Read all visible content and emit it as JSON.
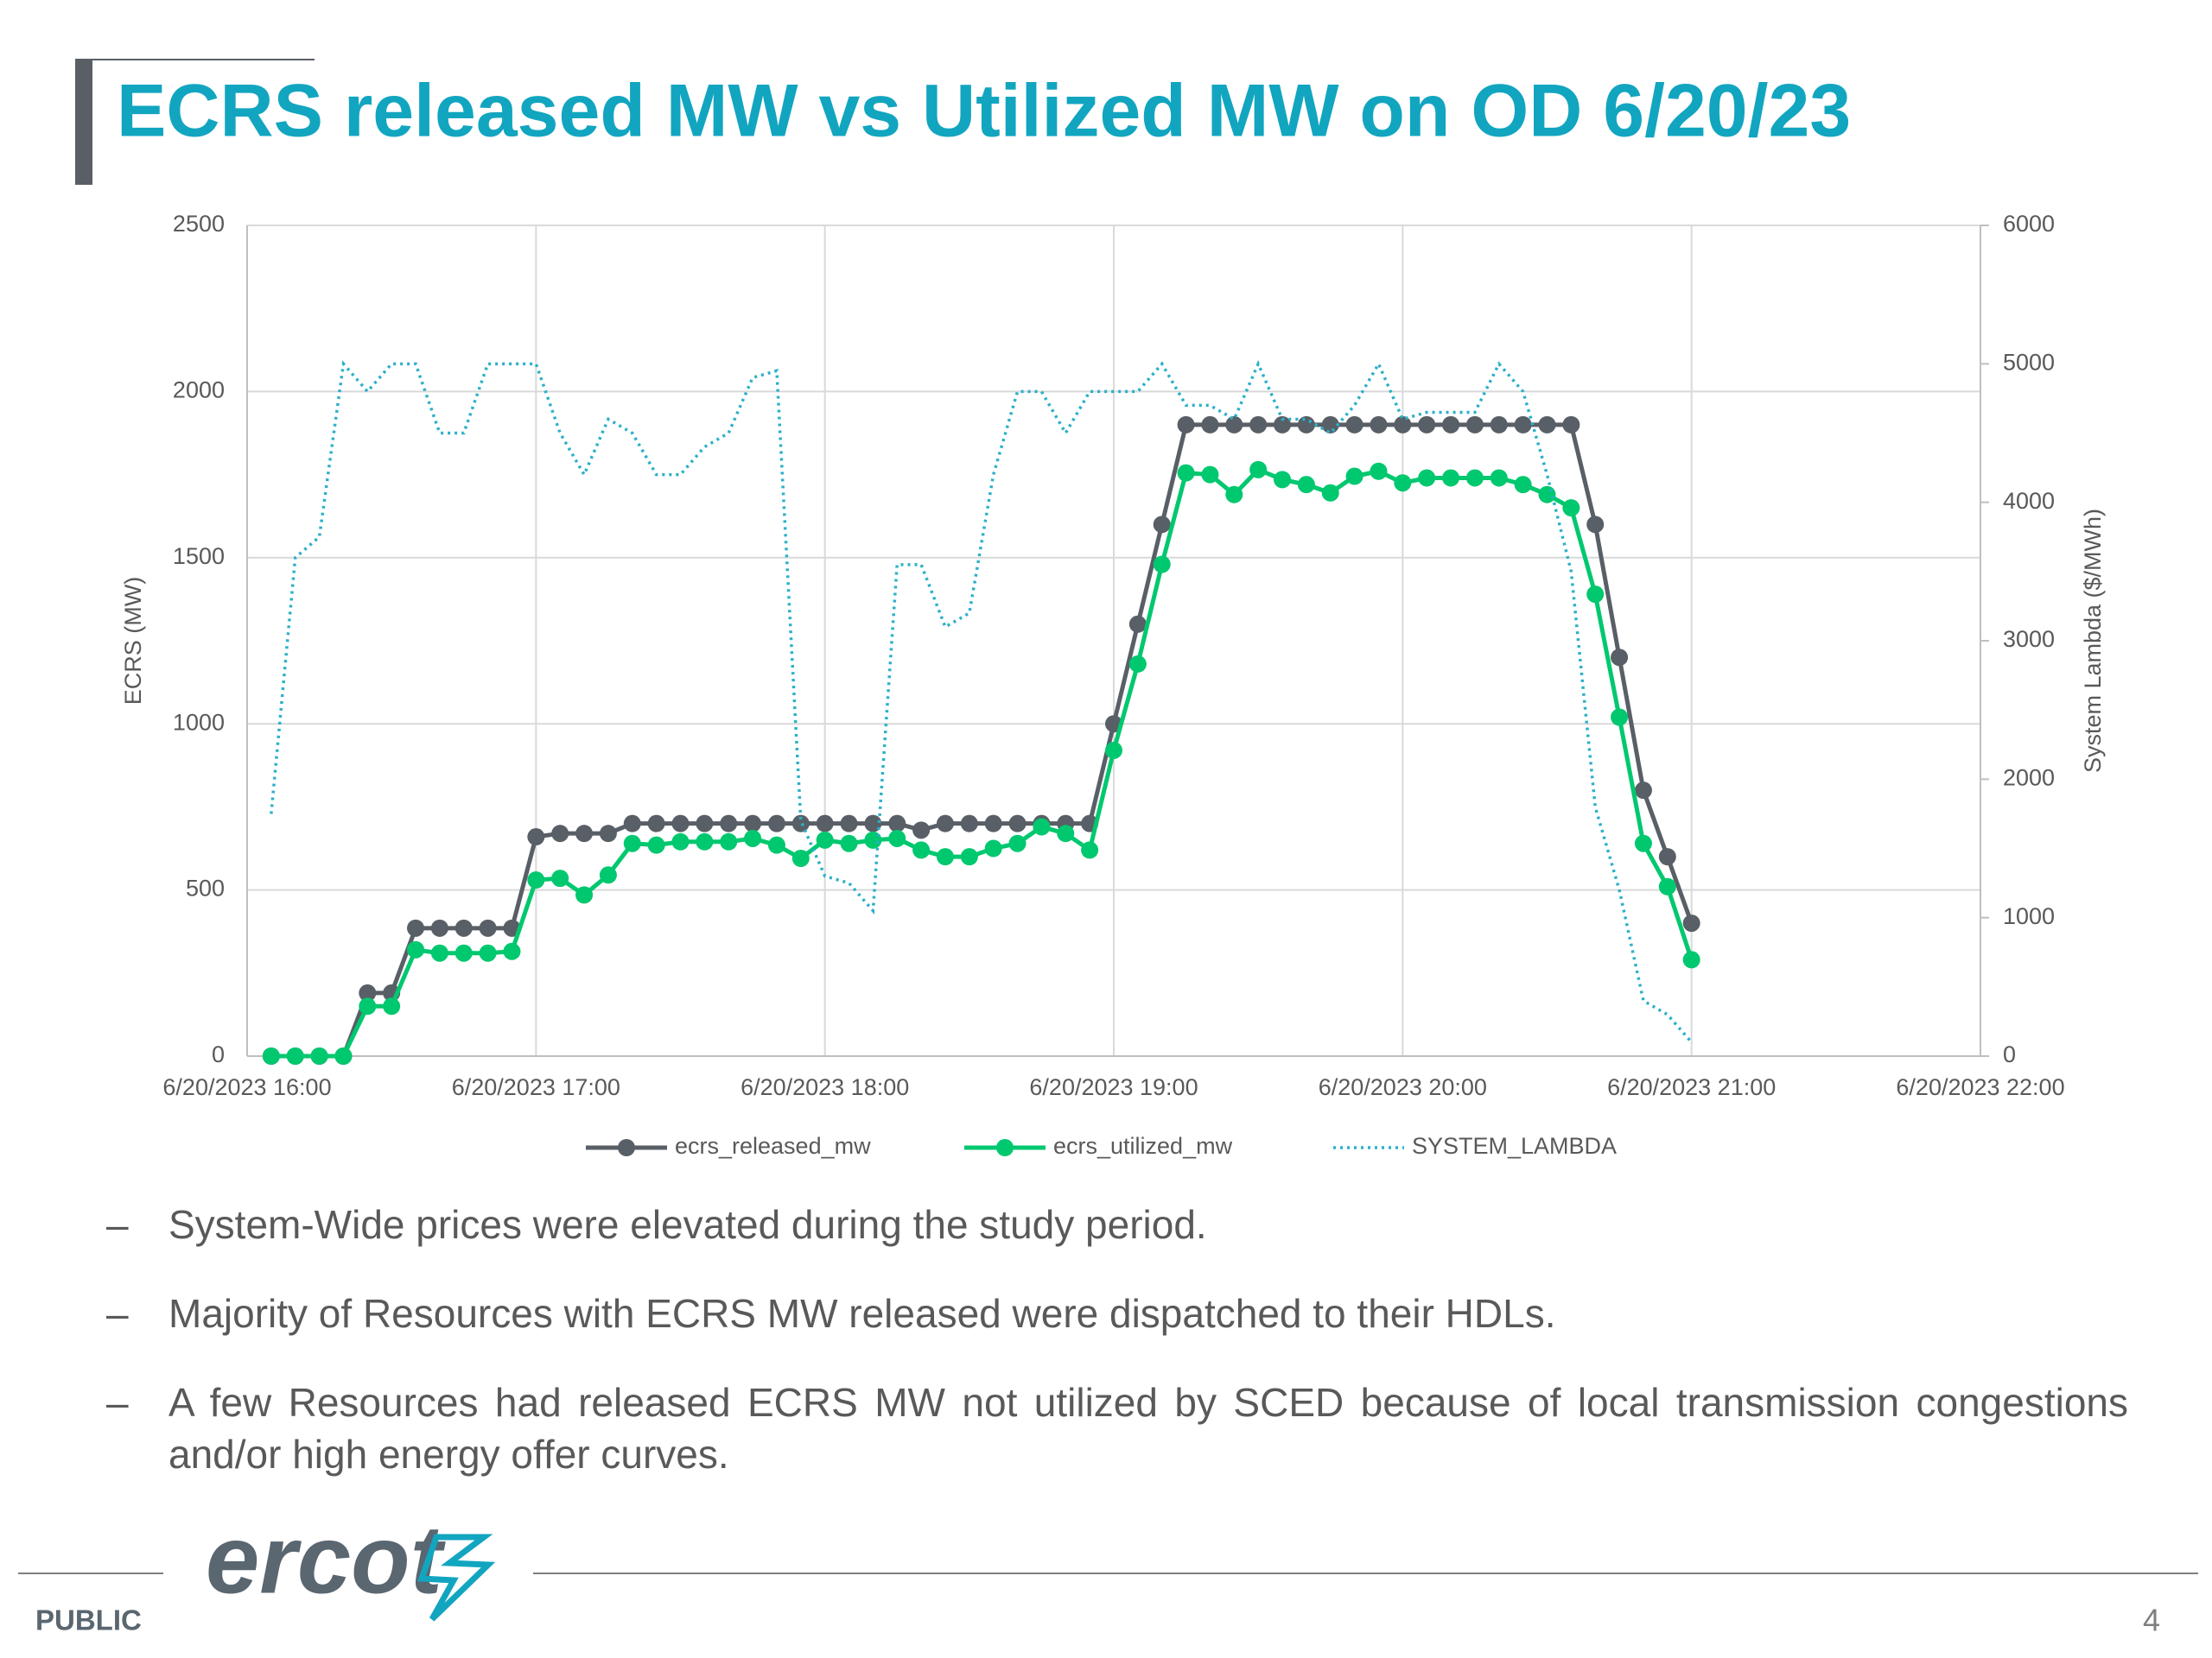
{
  "slide_title": "ECRS released MW vs Utilized MW on OD 6/20/23",
  "chart_data": {
    "type": "line",
    "x": [
      "6/20/2023 16:05",
      "6/20/2023 16:10",
      "6/20/2023 16:15",
      "6/20/2023 16:20",
      "6/20/2023 16:25",
      "6/20/2023 16:30",
      "6/20/2023 16:35",
      "6/20/2023 16:40",
      "6/20/2023 16:45",
      "6/20/2023 16:50",
      "6/20/2023 16:55",
      "6/20/2023 17:00",
      "6/20/2023 17:05",
      "6/20/2023 17:10",
      "6/20/2023 17:15",
      "6/20/2023 17:20",
      "6/20/2023 17:25",
      "6/20/2023 17:30",
      "6/20/2023 17:35",
      "6/20/2023 17:40",
      "6/20/2023 17:45",
      "6/20/2023 17:50",
      "6/20/2023 17:55",
      "6/20/2023 18:00",
      "6/20/2023 18:05",
      "6/20/2023 18:10",
      "6/20/2023 18:15",
      "6/20/2023 18:20",
      "6/20/2023 18:25",
      "6/20/2023 18:30",
      "6/20/2023 18:35",
      "6/20/2023 18:40",
      "6/20/2023 18:45",
      "6/20/2023 18:50",
      "6/20/2023 18:55",
      "6/20/2023 19:00",
      "6/20/2023 19:05",
      "6/20/2023 19:10",
      "6/20/2023 19:15",
      "6/20/2023 19:20",
      "6/20/2023 19:25",
      "6/20/2023 19:30",
      "6/20/2023 19:35",
      "6/20/2023 19:40",
      "6/20/2023 19:45",
      "6/20/2023 19:50",
      "6/20/2023 19:55",
      "6/20/2023 20:00",
      "6/20/2023 20:05",
      "6/20/2023 20:10",
      "6/20/2023 20:15",
      "6/20/2023 20:20",
      "6/20/2023 20:25",
      "6/20/2023 20:30",
      "6/20/2023 20:35",
      "6/20/2023 20:40",
      "6/20/2023 20:45",
      "6/20/2023 20:50",
      "6/20/2023 20:55",
      "6/20/2023 21:00"
    ],
    "series": [
      {
        "name": "ecrs_released_mw",
        "color": "#595f66",
        "marker": true,
        "values": [
          0,
          0,
          0,
          0,
          190,
          190,
          385,
          385,
          385,
          385,
          385,
          660,
          670,
          670,
          670,
          700,
          700,
          700,
          700,
          700,
          700,
          700,
          700,
          700,
          700,
          700,
          700,
          680,
          700,
          700,
          700,
          700,
          700,
          700,
          700,
          1000,
          1300,
          1600,
          1900,
          1900,
          1900,
          1900,
          1900,
          1900,
          1900,
          1900,
          1900,
          1900,
          1900,
          1900,
          1900,
          1900,
          1900,
          1900,
          1900,
          1600,
          1200,
          800,
          600,
          400
        ]
      },
      {
        "name": "ecrs_utilized_mw",
        "color": "#00c86f",
        "marker": true,
        "values": [
          0,
          0,
          0,
          0,
          150,
          150,
          320,
          310,
          310,
          310,
          315,
          530,
          535,
          485,
          545,
          640,
          635,
          645,
          645,
          645,
          655,
          635,
          595,
          650,
          640,
          650,
          655,
          620,
          600,
          600,
          625,
          640,
          690,
          670,
          620,
          920,
          1180,
          1480,
          1755,
          1750,
          1690,
          1765,
          1735,
          1720,
          1695,
          1745,
          1760,
          1725,
          1740,
          1740,
          1740,
          1740,
          1720,
          1690,
          1650,
          1390,
          1020,
          640,
          510,
          290
        ]
      },
      {
        "name": "SYSTEM_LAMBDA",
        "color": "#2bb0c8",
        "axis": "y2",
        "dotted": true,
        "values": [
          1750,
          3600,
          3750,
          5000,
          4800,
          5000,
          5000,
          4500,
          4500,
          5000,
          5000,
          5000,
          4500,
          4200,
          4600,
          4500,
          4200,
          4200,
          4400,
          4500,
          4900,
          4950,
          1700,
          1300,
          1250,
          1050,
          3550,
          3550,
          3100,
          3200,
          4200,
          4800,
          4800,
          4500,
          4800,
          4800,
          4800,
          5000,
          4700,
          4700,
          4600,
          5000,
          4600,
          4600,
          4500,
          4700,
          5000,
          4600,
          4650,
          4650,
          4650,
          5000,
          4800,
          4200,
          3500,
          1800,
          1200,
          400,
          300,
          100
        ]
      }
    ],
    "xlim": [
      "6/20/2023 16:00",
      "6/20/2023 22:00"
    ],
    "xticks": [
      "6/20/2023 16:00",
      "6/20/2023 17:00",
      "6/20/2023 18:00",
      "6/20/2023 19:00",
      "6/20/2023 20:00",
      "6/20/2023 21:00",
      "6/20/2023 22:00"
    ],
    "ylim": [
      0,
      2500
    ],
    "yticks": [
      0,
      500,
      1000,
      1500,
      2000,
      2500
    ],
    "y2lim": [
      0,
      6000
    ],
    "y2ticks": [
      0,
      1000,
      2000,
      3000,
      4000,
      5000,
      6000
    ],
    "y_label": "ECRS (MW)",
    "y2_label": "System Lambda ($/MWh)",
    "grid": true,
    "legend": "bottom"
  },
  "bullets": [
    "System-Wide prices were elevated during the study period.",
    "Majority of Resources with ECRS MW released were dispatched to their HDLs.",
    "A few Resources had released ECRS MW not utilized by SCED because of local transmission congestions and/or high energy offer curves."
  ],
  "footer": {
    "logo": "ercot",
    "classification": "PUBLIC",
    "page": "4"
  }
}
